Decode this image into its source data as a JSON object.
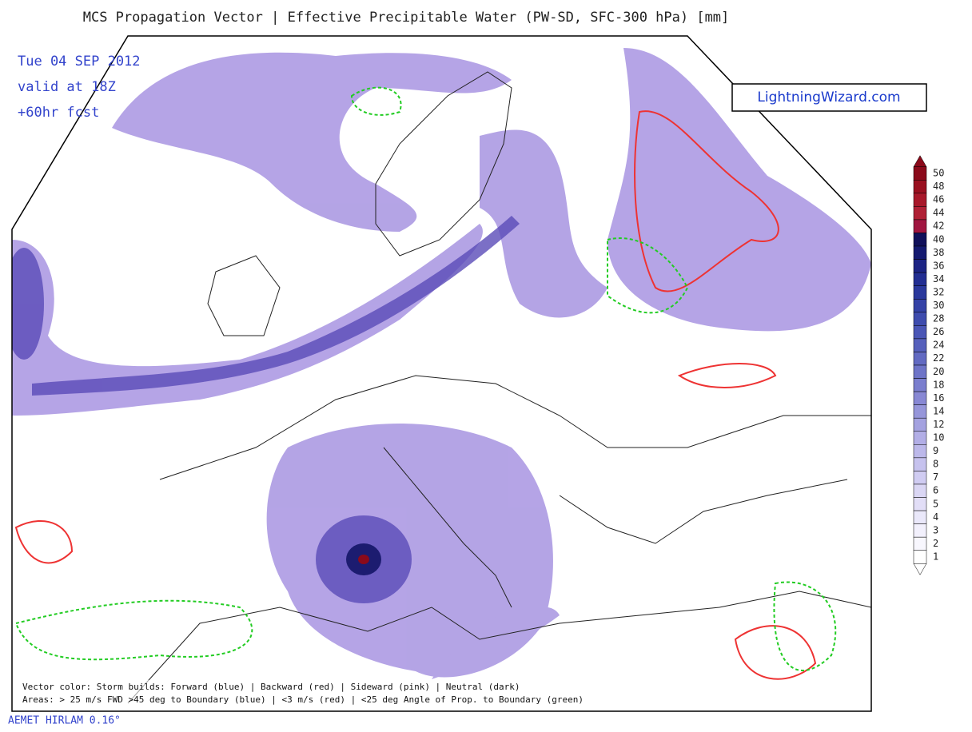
{
  "header": {
    "title": "MCS Propagation Vector | Effective Precipitable Water (PW-SD, SFC-300 hPa) [mm]",
    "date": "Tue 04 SEP 2012",
    "valid": "valid at 18Z",
    "forecast": "+60hr fcst"
  },
  "logo": "LightningWizard.com",
  "colorbar": {
    "labels": [
      50,
      48,
      46,
      44,
      42,
      40,
      38,
      36,
      34,
      32,
      30,
      28,
      26,
      24,
      22,
      20,
      18,
      16,
      14,
      12,
      10,
      9,
      8,
      7,
      6,
      5,
      4,
      3,
      2,
      1
    ],
    "colors": [
      "#8b0a1a",
      "#9a1020",
      "#a8182a",
      "#b02035",
      "#a01540",
      "#10105a",
      "#141a70",
      "#1c2484",
      "#222e92",
      "#2a389c",
      "#3442a6",
      "#3e4cae",
      "#4a56b6",
      "#5660bc",
      "#626ac2",
      "#6e74c8",
      "#7a7ece",
      "#8888d4",
      "#9696da",
      "#a4a2e0",
      "#b2aee6",
      "#bcb8ea",
      "#c6c2ee",
      "#d0ccf2",
      "#dad6f4",
      "#e2def7",
      "#eae8fa",
      "#f2f0fc",
      "#f8f7fe",
      "#ffffff"
    ]
  },
  "legend": {
    "line1": "Vector color: Storm builds: Forward (blue) | Backward (red) | Sideward (pink) | Neutral (dark)",
    "line2": "Areas: > 25 m/s FWD >45 deg to Boundary (blue) | <3 m/s (red) | <25 deg Angle of Prop. to Boundary (green)"
  },
  "source": "AEMET HIRLAM 0.16°"
}
